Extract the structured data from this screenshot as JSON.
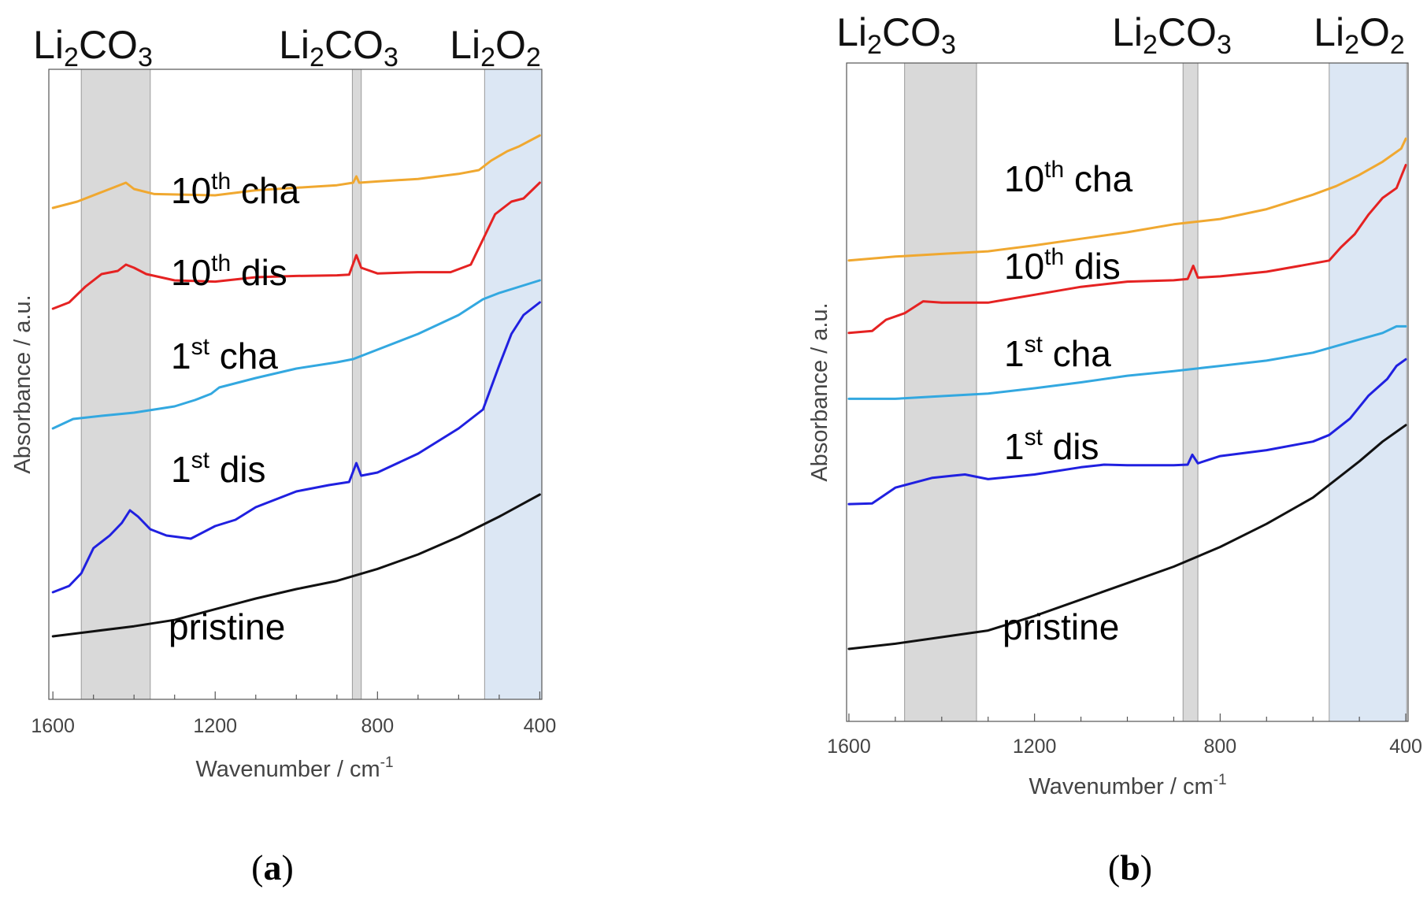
{
  "chart_data": [
    {
      "panel": "a",
      "caption_letter": "a",
      "type": "line",
      "xlabel": "Wavenumber / cm",
      "xlabel_sup": "-1",
      "ylabel": "Absorbance / a.u.",
      "xlim": [
        1610,
        395
      ],
      "ylim": [
        0,
        100
      ],
      "xticks": [
        1600,
        1200,
        800,
        400
      ],
      "bands": [
        {
          "label_main": "Li",
          "label_sub1": "2",
          "label_mid": "CO",
          "label_sub2": "3",
          "range": [
            1530,
            1360
          ],
          "color": "#d9d9d9"
        },
        {
          "label_main": "Li",
          "label_sub1": "2",
          "label_mid": "CO",
          "label_sub2": "3",
          "range": [
            862,
            840
          ],
          "color": "#d9d9d9"
        },
        {
          "label_main": "Li",
          "label_sub1": "2",
          "label_mid": "O",
          "label_sub2": "2",
          "range": [
            536,
            395
          ],
          "color": "#dce7f4"
        }
      ],
      "series": [
        {
          "label_pre": "10",
          "label_sup": "th",
          "label_post": " cha",
          "color": "#f0a830",
          "points": [
            [
              1600,
              78
            ],
            [
              1540,
              79
            ],
            [
              1480,
              80.5
            ],
            [
              1440,
              81.5
            ],
            [
              1420,
              82
            ],
            [
              1400,
              81
            ],
            [
              1350,
              80.2
            ],
            [
              1200,
              80
            ],
            [
              1100,
              80.8
            ],
            [
              1000,
              81.2
            ],
            [
              900,
              81.6
            ],
            [
              860,
              82
            ],
            [
              852,
              83
            ],
            [
              845,
              82
            ],
            [
              800,
              82.2
            ],
            [
              700,
              82.6
            ],
            [
              600,
              83.4
            ],
            [
              550,
              84
            ],
            [
              520,
              85.5
            ],
            [
              480,
              87
            ],
            [
              450,
              87.8
            ],
            [
              400,
              89.5
            ]
          ]
        },
        {
          "label_pre": "10",
          "label_sup": "th",
          "label_post": " dis",
          "color": "#e52222",
          "points": [
            [
              1600,
              62
            ],
            [
              1560,
              63
            ],
            [
              1520,
              65.5
            ],
            [
              1480,
              67.5
            ],
            [
              1440,
              68
            ],
            [
              1420,
              69
            ],
            [
              1400,
              68.5
            ],
            [
              1370,
              67.5
            ],
            [
              1300,
              66.5
            ],
            [
              1200,
              66.3
            ],
            [
              1100,
              67
            ],
            [
              1000,
              67.2
            ],
            [
              900,
              67.3
            ],
            [
              870,
              67.4
            ],
            [
              852,
              70.5
            ],
            [
              840,
              68.5
            ],
            [
              800,
              67.6
            ],
            [
              700,
              67.8
            ],
            [
              620,
              67.8
            ],
            [
              570,
              69
            ],
            [
              540,
              73
            ],
            [
              510,
              77
            ],
            [
              470,
              79
            ],
            [
              440,
              79.5
            ],
            [
              400,
              82
            ]
          ]
        },
        {
          "label_pre": "1",
          "label_sup": "st",
          "label_post": " cha",
          "color": "#33a8e0",
          "points": [
            [
              1600,
              43
            ],
            [
              1550,
              44.5
            ],
            [
              1480,
              45
            ],
            [
              1400,
              45.5
            ],
            [
              1300,
              46.5
            ],
            [
              1250,
              47.5
            ],
            [
              1210,
              48.5
            ],
            [
              1190,
              49.5
            ],
            [
              1100,
              51
            ],
            [
              1000,
              52.5
            ],
            [
              900,
              53.5
            ],
            [
              860,
              54
            ],
            [
              800,
              55.5
            ],
            [
              700,
              58
            ],
            [
              600,
              61
            ],
            [
              540,
              63.5
            ],
            [
              500,
              64.5
            ],
            [
              450,
              65.5
            ],
            [
              400,
              66.5
            ]
          ]
        },
        {
          "label_pre": "1",
          "label_sup": "st",
          "label_post": " dis",
          "color": "#2020e0",
          "points": [
            [
              1600,
              17
            ],
            [
              1560,
              18
            ],
            [
              1530,
              20
            ],
            [
              1500,
              24
            ],
            [
              1460,
              26
            ],
            [
              1430,
              28
            ],
            [
              1410,
              30
            ],
            [
              1390,
              29
            ],
            [
              1360,
              27
            ],
            [
              1320,
              26
            ],
            [
              1260,
              25.5
            ],
            [
              1200,
              27.5
            ],
            [
              1150,
              28.5
            ],
            [
              1100,
              30.5
            ],
            [
              1000,
              33
            ],
            [
              920,
              34
            ],
            [
              870,
              34.5
            ],
            [
              852,
              37.5
            ],
            [
              840,
              35.5
            ],
            [
              800,
              36
            ],
            [
              700,
              39
            ],
            [
              600,
              43
            ],
            [
              540,
              46
            ],
            [
              500,
              53
            ],
            [
              470,
              58
            ],
            [
              440,
              61
            ],
            [
              400,
              63
            ]
          ]
        },
        {
          "label_pre": "pristine",
          "label_sup": "",
          "label_post": "",
          "color": "#111111",
          "points": [
            [
              1600,
              10
            ],
            [
              1500,
              10.8
            ],
            [
              1400,
              11.6
            ],
            [
              1300,
              12.6
            ],
            [
              1200,
              14.3
            ],
            [
              1100,
              16
            ],
            [
              1000,
              17.5
            ],
            [
              900,
              18.8
            ],
            [
              800,
              20.7
            ],
            [
              700,
              23
            ],
            [
              600,
              25.8
            ],
            [
              500,
              29
            ],
            [
              400,
              32.5
            ]
          ]
        }
      ]
    },
    {
      "panel": "b",
      "caption_letter": "b",
      "type": "line",
      "xlabel": "Wavenumber / cm",
      "xlabel_sup": "-1",
      "ylabel": "Absorbance / a.u.",
      "xlim": [
        1605,
        395
      ],
      "ylim": [
        0,
        100
      ],
      "xticks": [
        1600,
        1200,
        800,
        400
      ],
      "bands": [
        {
          "label_main": "Li",
          "label_sub1": "2",
          "label_mid": "CO",
          "label_sub2": "3",
          "range": [
            1480,
            1325
          ],
          "color": "#d9d9d9"
        },
        {
          "label_main": "Li",
          "label_sub1": "2",
          "label_mid": "CO",
          "label_sub2": "3",
          "range": [
            880,
            848
          ],
          "color": "#d9d9d9"
        },
        {
          "label_main": "Li",
          "label_sub1": "2",
          "label_mid": "O",
          "label_sub2": "2",
          "range": [
            565,
            398
          ],
          "color": "#dce7f4"
        }
      ],
      "series": [
        {
          "label_pre": "10",
          "label_sup": "th",
          "label_post": " cha",
          "color": "#f0a830",
          "points": [
            [
              1600,
              70
            ],
            [
              1500,
              70.6
            ],
            [
              1400,
              71
            ],
            [
              1300,
              71.4
            ],
            [
              1200,
              72.3
            ],
            [
              1100,
              73.3
            ],
            [
              1000,
              74.3
            ],
            [
              900,
              75.5
            ],
            [
              800,
              76.3
            ],
            [
              700,
              77.8
            ],
            [
              600,
              80
            ],
            [
              550,
              81.3
            ],
            [
              500,
              83
            ],
            [
              450,
              85
            ],
            [
              410,
              87
            ],
            [
              400,
              88.5
            ]
          ]
        },
        {
          "label_pre": "10",
          "label_sup": "th",
          "label_post": " dis",
          "color": "#e52222",
          "points": [
            [
              1600,
              59
            ],
            [
              1550,
              59.3
            ],
            [
              1520,
              61
            ],
            [
              1480,
              62
            ],
            [
              1440,
              63.8
            ],
            [
              1400,
              63.6
            ],
            [
              1300,
              63.6
            ],
            [
              1200,
              64.8
            ],
            [
              1100,
              66
            ],
            [
              1000,
              66.8
            ],
            [
              900,
              67
            ],
            [
              870,
              67.2
            ],
            [
              858,
              69.2
            ],
            [
              848,
              67.4
            ],
            [
              800,
              67.6
            ],
            [
              700,
              68.3
            ],
            [
              620,
              69.3
            ],
            [
              565,
              70
            ],
            [
              540,
              72
            ],
            [
              510,
              74
            ],
            [
              480,
              77
            ],
            [
              450,
              79.5
            ],
            [
              420,
              81
            ],
            [
              400,
              84.5
            ]
          ]
        },
        {
          "label_pre": "1",
          "label_sup": "st",
          "label_post": " cha",
          "color": "#33a8e0",
          "points": [
            [
              1600,
              49
            ],
            [
              1500,
              49
            ],
            [
              1400,
              49.4
            ],
            [
              1300,
              49.8
            ],
            [
              1200,
              50.6
            ],
            [
              1100,
              51.5
            ],
            [
              1000,
              52.5
            ],
            [
              900,
              53.2
            ],
            [
              800,
              54
            ],
            [
              700,
              54.8
            ],
            [
              600,
              56
            ],
            [
              500,
              58
            ],
            [
              450,
              59
            ],
            [
              420,
              60
            ],
            [
              400,
              60
            ]
          ]
        },
        {
          "label_pre": "1",
          "label_sup": "st",
          "label_post": " dis",
          "color": "#2020e0",
          "points": [
            [
              1600,
              33
            ],
            [
              1550,
              33.1
            ],
            [
              1500,
              35.5
            ],
            [
              1420,
              37
            ],
            [
              1380,
              37.3
            ],
            [
              1350,
              37.5
            ],
            [
              1300,
              36.8
            ],
            [
              1200,
              37.5
            ],
            [
              1100,
              38.6
            ],
            [
              1050,
              39
            ],
            [
              1000,
              38.9
            ],
            [
              900,
              38.9
            ],
            [
              870,
              39
            ],
            [
              860,
              40.5
            ],
            [
              848,
              39.2
            ],
            [
              800,
              40.3
            ],
            [
              700,
              41.2
            ],
            [
              600,
              42.5
            ],
            [
              565,
              43.5
            ],
            [
              520,
              46
            ],
            [
              480,
              49.5
            ],
            [
              440,
              52
            ],
            [
              420,
              54
            ],
            [
              400,
              55
            ]
          ]
        },
        {
          "label_pre": "pristine",
          "label_sup": "",
          "label_post": "",
          "color": "#111111",
          "points": [
            [
              1600,
              11
            ],
            [
              1500,
              11.8
            ],
            [
              1400,
              12.8
            ],
            [
              1300,
              13.8
            ],
            [
              1200,
              16
            ],
            [
              1100,
              18.5
            ],
            [
              1000,
              21
            ],
            [
              900,
              23.5
            ],
            [
              800,
              26.5
            ],
            [
              700,
              30
            ],
            [
              600,
              34
            ],
            [
              500,
              39.5
            ],
            [
              450,
              42.5
            ],
            [
              400,
              45
            ]
          ]
        }
      ]
    }
  ]
}
